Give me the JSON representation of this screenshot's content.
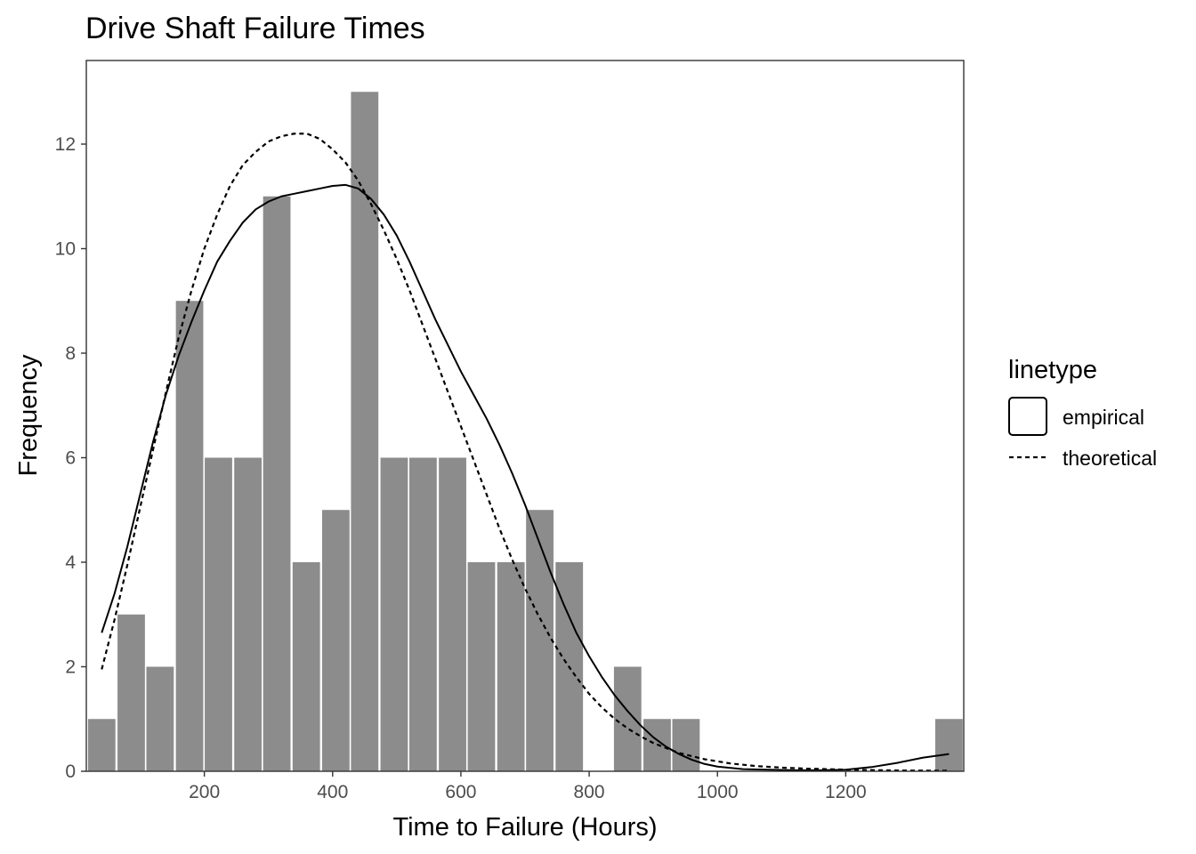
{
  "chart_data": {
    "type": "bar",
    "title": "Drive Shaft Failure Times",
    "xlabel": "Time to Failure (Hours)",
    "ylabel": "Frequency",
    "xlim": [
      16,
      1384
    ],
    "ylim": [
      0,
      13.6
    ],
    "x_ticks": [
      200,
      400,
      600,
      800,
      1000,
      1200
    ],
    "y_ticks": [
      0,
      2,
      4,
      6,
      8,
      10,
      12
    ],
    "grid": false,
    "bar_color": "#8c8c8c",
    "bins": [
      {
        "x": 40,
        "count": 1
      },
      {
        "x": 86,
        "count": 3
      },
      {
        "x": 131,
        "count": 2
      },
      {
        "x": 177,
        "count": 9
      },
      {
        "x": 222,
        "count": 6
      },
      {
        "x": 268,
        "count": 6
      },
      {
        "x": 313,
        "count": 11
      },
      {
        "x": 359,
        "count": 4
      },
      {
        "x": 405,
        "count": 5
      },
      {
        "x": 450,
        "count": 13
      },
      {
        "x": 496,
        "count": 6
      },
      {
        "x": 541,
        "count": 6
      },
      {
        "x": 587,
        "count": 6
      },
      {
        "x": 632,
        "count": 4
      },
      {
        "x": 678,
        "count": 4
      },
      {
        "x": 723,
        "count": 5
      },
      {
        "x": 769,
        "count": 4
      },
      {
        "x": 815,
        "count": 0
      },
      {
        "x": 860,
        "count": 2
      },
      {
        "x": 906,
        "count": 1
      },
      {
        "x": 951,
        "count": 1
      },
      {
        "x": 997,
        "count": 0
      },
      {
        "x": 1042,
        "count": 0
      },
      {
        "x": 1088,
        "count": 0
      },
      {
        "x": 1133,
        "count": 0
      },
      {
        "x": 1179,
        "count": 0
      },
      {
        "x": 1224,
        "count": 0
      },
      {
        "x": 1270,
        "count": 0
      },
      {
        "x": 1315,
        "count": 0
      },
      {
        "x": 1361,
        "count": 1
      }
    ],
    "bin_width": 45.5,
    "series": [
      {
        "name": "empirical",
        "linetype": "solid",
        "points": [
          [
            40,
            2.65
          ],
          [
            60,
            3.4
          ],
          [
            80,
            4.3
          ],
          [
            100,
            5.3
          ],
          [
            120,
            6.3
          ],
          [
            140,
            7.2
          ],
          [
            160,
            7.95
          ],
          [
            180,
            8.6
          ],
          [
            200,
            9.2
          ],
          [
            220,
            9.75
          ],
          [
            240,
            10.15
          ],
          [
            260,
            10.5
          ],
          [
            280,
            10.75
          ],
          [
            300,
            10.9
          ],
          [
            320,
            11.0
          ],
          [
            340,
            11.05
          ],
          [
            360,
            11.1
          ],
          [
            380,
            11.15
          ],
          [
            400,
            11.2
          ],
          [
            420,
            11.22
          ],
          [
            440,
            11.15
          ],
          [
            460,
            10.95
          ],
          [
            480,
            10.65
          ],
          [
            500,
            10.25
          ],
          [
            520,
            9.75
          ],
          [
            540,
            9.2
          ],
          [
            560,
            8.65
          ],
          [
            580,
            8.15
          ],
          [
            600,
            7.65
          ],
          [
            620,
            7.2
          ],
          [
            640,
            6.75
          ],
          [
            660,
            6.25
          ],
          [
            680,
            5.7
          ],
          [
            700,
            5.1
          ],
          [
            720,
            4.45
          ],
          [
            740,
            3.8
          ],
          [
            760,
            3.2
          ],
          [
            780,
            2.65
          ],
          [
            800,
            2.2
          ],
          [
            820,
            1.8
          ],
          [
            840,
            1.45
          ],
          [
            860,
            1.15
          ],
          [
            880,
            0.88
          ],
          [
            900,
            0.65
          ],
          [
            920,
            0.47
          ],
          [
            940,
            0.33
          ],
          [
            960,
            0.22
          ],
          [
            980,
            0.14
          ],
          [
            1000,
            0.09
          ],
          [
            1040,
            0.04
          ],
          [
            1080,
            0.03
          ],
          [
            1120,
            0.02
          ],
          [
            1160,
            0.02
          ],
          [
            1200,
            0.03
          ],
          [
            1240,
            0.08
          ],
          [
            1280,
            0.16
          ],
          [
            1320,
            0.26
          ],
          [
            1361,
            0.33
          ]
        ]
      },
      {
        "name": "theoretical",
        "linetype": "dashed",
        "points": [
          [
            40,
            1.95
          ],
          [
            60,
            2.9
          ],
          [
            80,
            3.95
          ],
          [
            100,
            5.05
          ],
          [
            120,
            6.15
          ],
          [
            140,
            7.25
          ],
          [
            160,
            8.3
          ],
          [
            180,
            9.2
          ],
          [
            200,
            10.0
          ],
          [
            220,
            10.65
          ],
          [
            240,
            11.2
          ],
          [
            260,
            11.6
          ],
          [
            280,
            11.85
          ],
          [
            300,
            12.05
          ],
          [
            320,
            12.15
          ],
          [
            340,
            12.2
          ],
          [
            360,
            12.2
          ],
          [
            380,
            12.1
          ],
          [
            400,
            11.9
          ],
          [
            420,
            11.65
          ],
          [
            440,
            11.3
          ],
          [
            460,
            10.85
          ],
          [
            480,
            10.35
          ],
          [
            500,
            9.8
          ],
          [
            520,
            9.2
          ],
          [
            540,
            8.55
          ],
          [
            560,
            7.9
          ],
          [
            580,
            7.25
          ],
          [
            600,
            6.6
          ],
          [
            620,
            5.95
          ],
          [
            640,
            5.3
          ],
          [
            660,
            4.65
          ],
          [
            680,
            4.05
          ],
          [
            700,
            3.5
          ],
          [
            720,
            3.0
          ],
          [
            740,
            2.55
          ],
          [
            760,
            2.15
          ],
          [
            780,
            1.8
          ],
          [
            800,
            1.48
          ],
          [
            820,
            1.22
          ],
          [
            840,
            1.0
          ],
          [
            860,
            0.82
          ],
          [
            880,
            0.67
          ],
          [
            900,
            0.54
          ],
          [
            940,
            0.35
          ],
          [
            980,
            0.23
          ],
          [
            1020,
            0.15
          ],
          [
            1060,
            0.1
          ],
          [
            1100,
            0.07
          ],
          [
            1140,
            0.05
          ],
          [
            1200,
            0.03
          ],
          [
            1280,
            0.015
          ],
          [
            1361,
            0.01
          ]
        ]
      }
    ],
    "legend": {
      "title": "linetype",
      "position": "right",
      "entries": [
        {
          "label": "empirical",
          "linetype": "solid"
        },
        {
          "label": "theoretical",
          "linetype": "dashed"
        }
      ]
    }
  }
}
